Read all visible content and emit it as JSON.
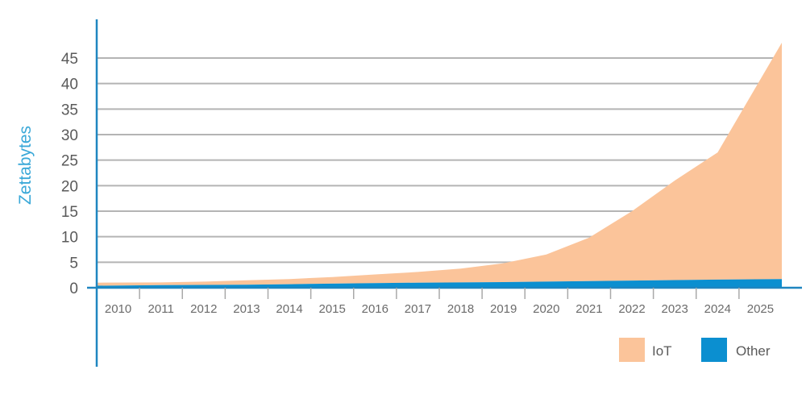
{
  "chart_data": {
    "type": "area",
    "stacked": true,
    "x": [
      "2010",
      "2011",
      "2012",
      "2013",
      "2014",
      "2015",
      "2016",
      "2017",
      "2018",
      "2019",
      "2020",
      "2021",
      "2022",
      "2023",
      "2024",
      "2025"
    ],
    "series": [
      {
        "name": "Other",
        "color": "#0b8fd0",
        "values": [
          0.4,
          0.5,
          0.55,
          0.6,
          0.7,
          0.8,
          0.9,
          1.0,
          1.05,
          1.1,
          1.2,
          1.3,
          1.4,
          1.5,
          1.6,
          1.7
        ]
      },
      {
        "name": "IoT",
        "color": "#fbc49a",
        "values": [
          0.6,
          0.55,
          0.65,
          0.85,
          1.0,
          1.3,
          1.7,
          2.1,
          2.7,
          3.7,
          5.3,
          8.5,
          13.6,
          19.5,
          24.9,
          46.3
        ]
      }
    ],
    "ylabel": "Zettabytes",
    "ylabel_color": "#3aa8d8",
    "ylim": [
      0,
      48
    ],
    "yticks": [
      0,
      5,
      10,
      15,
      20,
      25,
      30,
      35,
      40,
      45
    ],
    "grid": true,
    "legend": {
      "position": "bottom-right",
      "order": [
        "IoT",
        "Other"
      ]
    },
    "axis_color": "#1f86c0",
    "grid_color": "#b4b4b4"
  }
}
